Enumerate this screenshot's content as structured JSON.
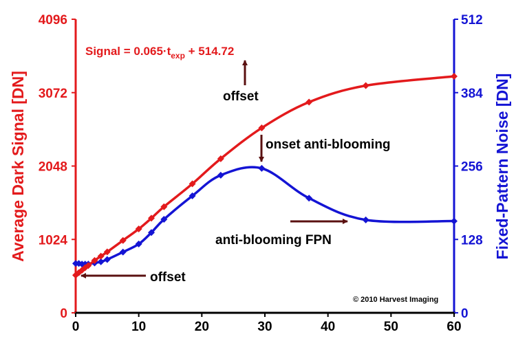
{
  "chart_data": {
    "type": "line",
    "x": [
      0,
      0.5,
      1,
      1.5,
      2,
      3,
      4,
      5,
      7.5,
      10,
      12,
      14,
      18.5,
      23,
      29.5,
      37,
      46,
      60
    ],
    "xlim": [
      0,
      60
    ],
    "xticks": [
      0,
      10,
      20,
      30,
      40,
      50,
      60
    ],
    "y_left": {
      "label": "Average Dark Signal [DN]",
      "ylim": [
        0,
        4096
      ],
      "ticks": [
        "0",
        "1024",
        "2048",
        "3072",
        "4096"
      ],
      "color": "#e31a1c"
    },
    "y_right": {
      "label": "Fixed-Pattern Noise [DN]",
      "ylim": [
        0,
        512
      ],
      "ticks": [
        "0",
        "128",
        "256",
        "384",
        "512"
      ],
      "color": "#1414d4"
    },
    "series": [
      {
        "axis": "left",
        "color": "#e31a1c",
        "marker": "diamond",
        "x": [
          0,
          0.5,
          1,
          1.5,
          2,
          3,
          4,
          5,
          7.5,
          10,
          12,
          14,
          18.5,
          23,
          29.5,
          37,
          46,
          60
        ],
        "values": [
          525,
          560,
          595,
          630,
          660,
          730,
          790,
          850,
          1010,
          1170,
          1320,
          1480,
          1800,
          2150,
          2580,
          2940,
          3170,
          3300
        ]
      },
      {
        "axis": "right",
        "color": "#1414d4",
        "marker": "diamond",
        "x": [
          0,
          0.5,
          1,
          1.5,
          2,
          3,
          4,
          5,
          7.5,
          10,
          12,
          14,
          18.5,
          23,
          29.5,
          37,
          46,
          60
        ],
        "values": [
          86,
          86,
          85,
          85,
          85,
          87,
          89,
          93,
          106,
          120,
          140,
          163,
          204,
          240,
          252,
          200,
          162,
          160
        ]
      }
    ],
    "annotations": {
      "equation_main": "Signal = 0.065·t",
      "equation_sub": "exp",
      "equation_tail": " + 514.72",
      "offset_top": "offset",
      "offset_bottom": "offset",
      "onset": "onset anti-blooming",
      "fpn": "anti-blooming FPN",
      "copyright": "© 2010 Harvest Imaging"
    }
  }
}
